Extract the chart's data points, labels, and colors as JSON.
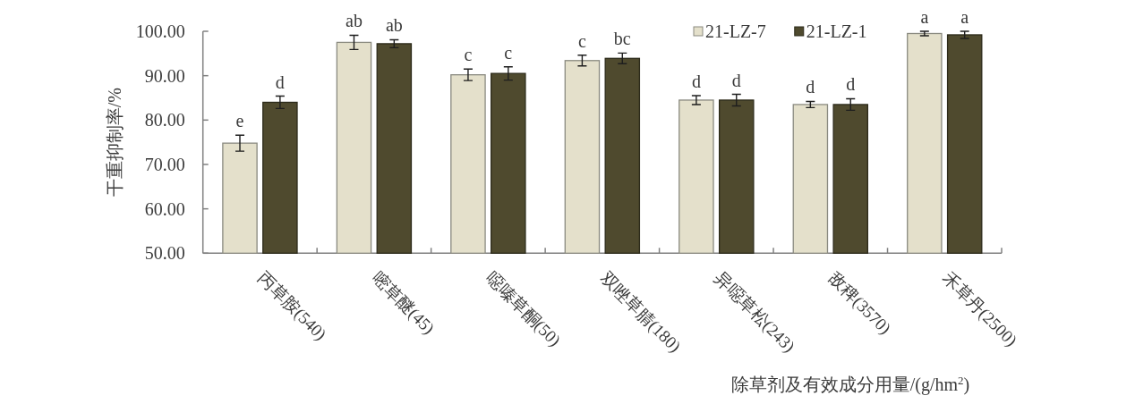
{
  "chart_data": {
    "type": "bar",
    "xlabel": "除草剂及有效成分用量/(g/hm$^{2}$)",
    "ylabel": "干重抑制率/%",
    "categories": [
      "丙草胺(540)",
      "嘧草醚(45)",
      "噁嗪草酮(50)",
      "双唑草腈(180)",
      "异噁草松(243)",
      "敌稗(3570)",
      "禾草丹(2500)"
    ],
    "series": [
      {
        "name": "21-LZ-7",
        "color": "#e4e0cb",
        "values": [
          74.8,
          97.5,
          90.2,
          93.4,
          84.5,
          83.5,
          99.5
        ],
        "errors": [
          1.8,
          1.6,
          1.3,
          1.2,
          1.0,
          0.7,
          0.5
        ],
        "value_labels": [
          "e",
          "ab",
          "c",
          "c",
          "d",
          "d",
          "a"
        ]
      },
      {
        "name": "21-LZ-1",
        "color": "#4f4a2e",
        "values": [
          84.0,
          97.2,
          90.5,
          93.9,
          84.5,
          83.5,
          99.2
        ],
        "errors": [
          1.4,
          0.9,
          1.5,
          1.2,
          1.3,
          1.3,
          0.8
        ],
        "value_labels": [
          "d",
          "ab",
          "c",
          "bc",
          "d",
          "d",
          "a"
        ]
      }
    ],
    "ylim": [
      50,
      100
    ],
    "yticks": [
      {
        "value": 50,
        "label": "50.00"
      },
      {
        "value": 60,
        "label": "60.00"
      },
      {
        "value": 70,
        "label": "70.00"
      },
      {
        "value": 80,
        "label": "80.00"
      },
      {
        "value": 90,
        "label": "90.00"
      },
      {
        "value": 100,
        "label": "100.00"
      }
    ],
    "legend": "top right"
  }
}
